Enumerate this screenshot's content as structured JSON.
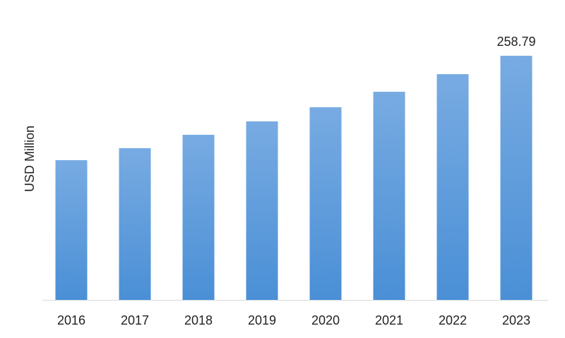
{
  "chart_data": {
    "type": "bar",
    "y_label": "USD Million",
    "categories": [
      "2016",
      "2017",
      "2018",
      "2019",
      "2020",
      "2021",
      "2022",
      "2023"
    ],
    "values": [
      148.1,
      160.8,
      175.0,
      189.2,
      204.2,
      220.6,
      239.3,
      258.79
    ],
    "value_labels": [
      null,
      null,
      null,
      null,
      null,
      null,
      null,
      "258.79"
    ],
    "color": "#5b9be0"
  }
}
